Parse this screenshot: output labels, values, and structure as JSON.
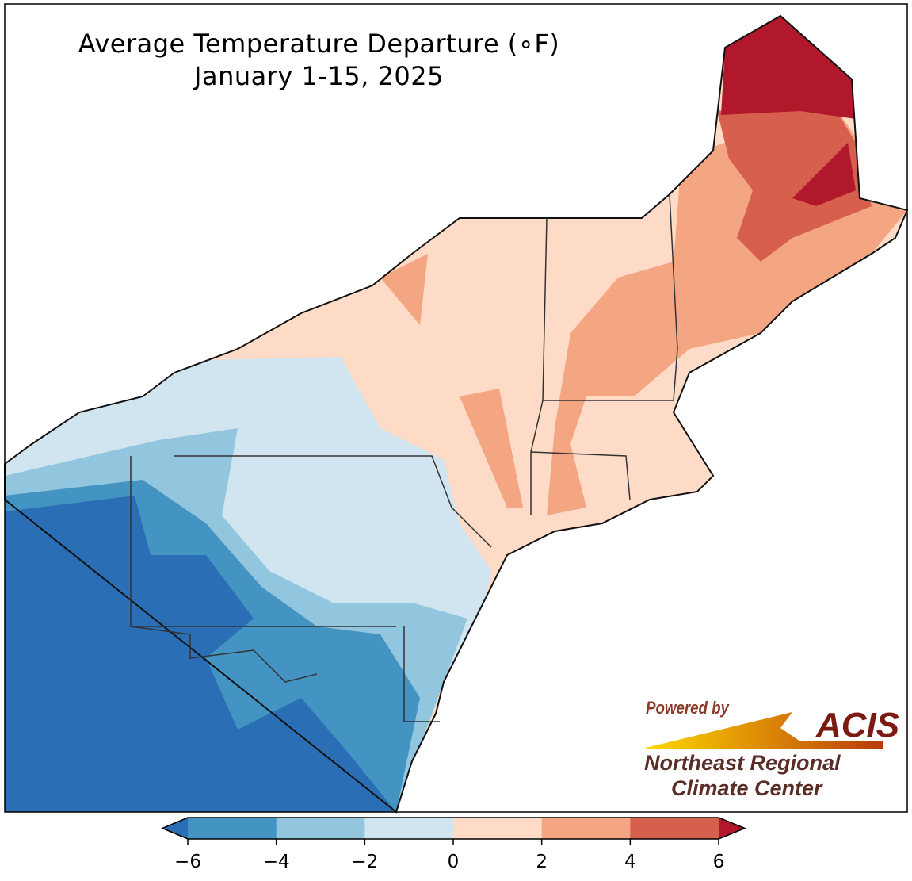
{
  "title": "Average Temperature Departure (∘F)",
  "subtitle": "January 1-15, 2025",
  "colorbar": {
    "ticks": [
      "−6",
      "−4",
      "−2",
      "0",
      "2",
      "4",
      "6"
    ],
    "colors": [
      "#2a6fb5",
      "#4393c3",
      "#92c5de",
      "#d1e5f0",
      "#fddbc7",
      "#f4a582",
      "#d6604d",
      "#b2182b"
    ]
  },
  "logo": {
    "powered_by": "Powered by",
    "acis": "ACIS",
    "line1": "Northeast Regional",
    "line2": "Climate Center"
  }
}
